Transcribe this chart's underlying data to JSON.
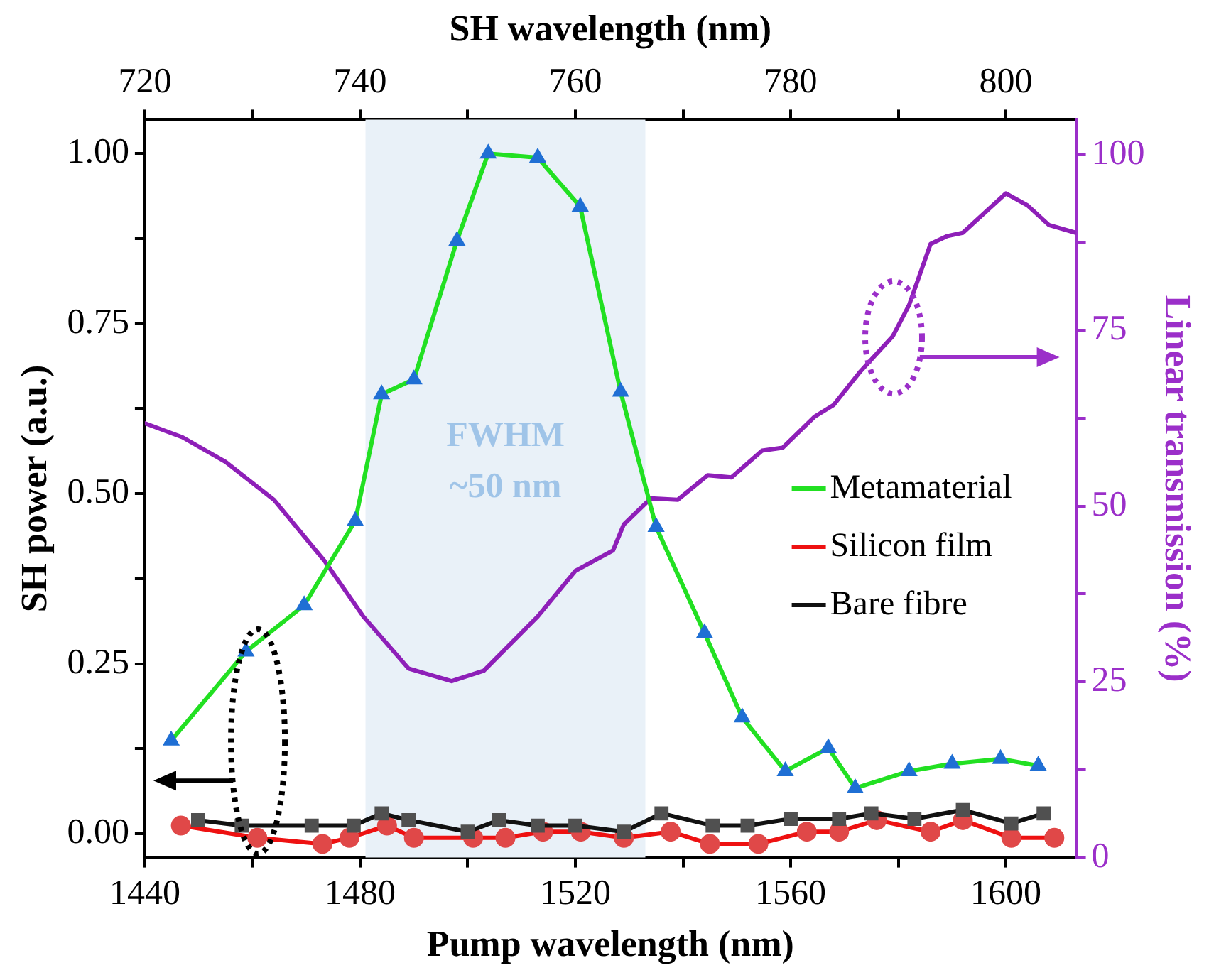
{
  "chart_data": {
    "type": "line",
    "x2label": "SH wavelength (nm)",
    "xlabel": "Pump wavelength (nm)",
    "ylabel": "SH power (a.u.)",
    "y2label": "Linear transmission (%)",
    "xlim": [
      1440,
      1613
    ],
    "xticks": [
      1440,
      {
        "value": 1460,
        "label": null
      },
      1480,
      {
        "value": 1500,
        "label": null
      },
      1520,
      {
        "value": 1540,
        "label": null
      },
      1560,
      {
        "value": 1580,
        "label": null
      },
      1600
    ],
    "x2lim": [
      720,
      806.5
    ],
    "x2ticks": [
      720,
      {
        "value": 730,
        "label": null
      },
      740,
      {
        "value": 750,
        "label": null
      },
      760,
      {
        "value": 770,
        "label": null
      },
      780,
      {
        "value": 790,
        "label": null
      },
      800
    ],
    "ylim": [
      -0.035,
      1.05
    ],
    "yticks": [
      {
        "value": 0,
        "label": "0.00"
      },
      {
        "value": 0.125,
        "label": null
      },
      {
        "value": 0.25,
        "label": "0.25"
      },
      {
        "value": 0.375,
        "label": null
      },
      {
        "value": 0.5,
        "label": "0.50"
      },
      {
        "value": 0.625,
        "label": null
      },
      {
        "value": 0.75,
        "label": "0.75"
      },
      {
        "value": 0.875,
        "label": null
      },
      {
        "value": 1,
        "label": "1.00"
      }
    ],
    "y2lim": [
      0,
      105
    ],
    "y2ticks": [
      0,
      {
        "value": 12.5,
        "label": null
      },
      25,
      {
        "value": 37.5,
        "label": null
      },
      50,
      {
        "value": 62.5,
        "label": null
      },
      75,
      {
        "value": 87.5,
        "label": null
      },
      100
    ],
    "grid": false,
    "legend": "right",
    "bands": [
      {
        "axis": "x",
        "from": 1481,
        "to": 1533,
        "label": "FWHM ~50 nm",
        "color": "#e9f1f8"
      }
    ],
    "series": [
      {
        "name": "Metamaterial",
        "color": "#22e022",
        "marker": "triangle",
        "colors": [
          "#1f6fd4",
          "#1f6fd4",
          "#1f6fd4",
          "#1f6fd4",
          "#1f6fd4",
          "#1f6fd4",
          "#1f6fd4",
          "#1f6fd4",
          "#1f6fd4",
          "#1f6fd4",
          "#1f6fd4",
          "#1f6fd4",
          "#1f6fd4",
          "#1f6fd4",
          "#1f6fd4",
          "#1f6fd4",
          "#1f6fd4",
          "#1f6fd4",
          "#1f6fd4",
          "#1f6fd4",
          "#1f6fd4"
        ],
        "x": [
          1444.9,
          1458.8,
          1469.6,
          1479.1,
          1484,
          1490,
          1498,
          1503.8,
          1513,
          1520.9,
          1528.4,
          1535,
          1544,
          1551,
          1559,
          1567,
          1572,
          1582,
          1590,
          1599,
          1606
        ],
        "values": [
          0.137,
          0.268,
          0.336,
          0.46,
          0.646,
          0.668,
          0.872,
          1.0,
          0.994,
          0.922,
          0.65,
          0.451,
          0.295,
          0.171,
          0.092,
          0.126,
          0.067,
          0.092,
          0.103,
          0.11,
          0.1
        ]
      },
      {
        "name": "Silicon film",
        "color": "#ee1111",
        "marker": "circle",
        "colors": [
          "#e04848",
          "#e04848",
          "#e04848",
          "#e04848",
          "#e04848",
          "#e04848",
          "#e04848",
          "#e04848",
          "#e04848",
          "#e04848",
          "#e04848",
          "#e04848",
          "#e04848",
          "#e04848",
          "#e04848",
          "#e04848",
          "#e04848",
          "#e04848",
          "#e04848",
          "#e04848",
          "#e04848"
        ],
        "x": [
          1446.7,
          1460.9,
          1473,
          1478,
          1485,
          1490,
          1501,
          1507,
          1514,
          1521,
          1529,
          1537.7,
          1545,
          1554,
          1563,
          1569,
          1576,
          1586,
          1592,
          1601,
          1609
        ],
        "values": [
          0.012,
          -0.006,
          -0.015,
          -0.006,
          0.012,
          -0.006,
          -0.006,
          -0.006,
          0.003,
          0.003,
          -0.006,
          0.003,
          -0.015,
          -0.015,
          0.003,
          0.003,
          0.02,
          0.003,
          0.02,
          -0.006,
          -0.006
        ]
      },
      {
        "name": "Bare fibre",
        "color": "#111111",
        "marker": "square",
        "colors": [
          "#505050",
          "#505050",
          "#505050",
          "#505050",
          "#505050",
          "#505050",
          "#505050",
          "#505050",
          "#505050",
          "#505050",
          "#505050",
          "#505050",
          "#505050",
          "#505050",
          "#505050",
          "#505050",
          "#505050",
          "#505050",
          "#505050",
          "#505050",
          "#505050"
        ],
        "x": [
          1449.9,
          1458,
          1471,
          1478.8,
          1484,
          1489,
          1500,
          1505.8,
          1513,
          1520,
          1529,
          1536,
          1545.5,
          1552,
          1560,
          1569,
          1575,
          1583,
          1592,
          1601,
          1607
        ],
        "values": [
          0.02,
          0.012,
          0.012,
          0.012,
          0.03,
          0.02,
          0.003,
          0.02,
          0.012,
          0.012,
          0.003,
          0.03,
          0.012,
          0.012,
          0.022,
          0.022,
          0.03,
          0.022,
          0.035,
          0.015,
          0.03
        ]
      },
      {
        "color": "#8e1fb8",
        "marker": "none",
        "axis": "y2",
        "x": [
          1440,
          1447,
          1455,
          1464,
          1473.5,
          1480.6,
          1489,
          1497,
          1503,
          1513,
          1520,
          1527,
          1529,
          1534,
          1539,
          1544.6,
          1549,
          1554.7,
          1558.5,
          1564.4,
          1568,
          1573,
          1579,
          1582,
          1586,
          1589,
          1592,
          1600,
          1604,
          1608,
          1613
        ],
        "values": [
          61.8,
          59.8,
          56.3,
          50.9,
          42.1,
          34.3,
          26.9,
          25.1,
          26.6,
          34.3,
          40.8,
          43.7,
          47.4,
          51.1,
          50.9,
          54.4,
          54.1,
          57.9,
          58.3,
          62.7,
          64.4,
          69.2,
          74.2,
          78.6,
          87.3,
          88.4,
          88.9,
          94.5,
          92.8,
          90,
          88.9
        ]
      }
    ]
  }
}
